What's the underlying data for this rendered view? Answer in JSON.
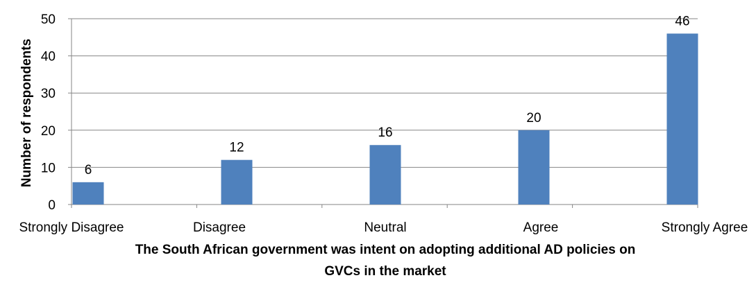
{
  "chart_data": {
    "type": "bar",
    "categories": [
      "Strongly Disagree",
      "Disagree",
      "Neutral",
      "Agree",
      "Strongly Agree"
    ],
    "values": [
      6,
      12,
      16,
      20,
      46
    ],
    "data_labels": [
      "6",
      "12",
      "16",
      "20",
      "46"
    ],
    "title": "",
    "xlabel_lines": [
      "The South African government was intent on adopting additional AD policies on",
      "GVCs in the market"
    ],
    "ylabel": "Number of respondents",
    "ylim": [
      0,
      50
    ],
    "yticks": [
      0,
      10,
      20,
      30,
      40,
      50
    ],
    "grid": true,
    "legend": "none",
    "bar_color": "#4F81BD",
    "grid_color": "#868686"
  }
}
